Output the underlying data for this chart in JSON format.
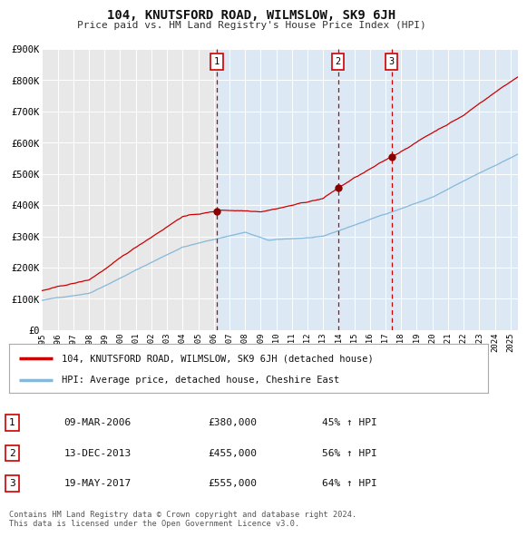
{
  "title": "104, KNUTSFORD ROAD, WILMSLOW, SK9 6JH",
  "subtitle": "Price paid vs. HM Land Registry's House Price Index (HPI)",
  "bg_color_left": "#e8e8e8",
  "bg_color_right": "#dce9f5",
  "red_line_color": "#cc0000",
  "blue_line_color": "#85b8d9",
  "grid_color": "#ffffff",
  "ylim": [
    0,
    900000
  ],
  "yticks": [
    0,
    100000,
    200000,
    300000,
    400000,
    500000,
    600000,
    700000,
    800000,
    900000
  ],
  "ytick_labels": [
    "£0",
    "£100K",
    "£200K",
    "£300K",
    "£400K",
    "£500K",
    "£600K",
    "£700K",
    "£800K",
    "£900K"
  ],
  "sale_dates": [
    2006.19,
    2013.95,
    2017.38
  ],
  "sale_prices": [
    380000,
    455000,
    555000
  ],
  "sale_labels": [
    "1",
    "2",
    "3"
  ],
  "legend_red_label": "104, KNUTSFORD ROAD, WILMSLOW, SK9 6JH (detached house)",
  "legend_blue_label": "HPI: Average price, detached house, Cheshire East",
  "table_data": [
    [
      "1",
      "09-MAR-2006",
      "£380,000",
      "45% ↑ HPI"
    ],
    [
      "2",
      "13-DEC-2013",
      "£455,000",
      "56% ↑ HPI"
    ],
    [
      "3",
      "19-MAY-2017",
      "£555,000",
      "64% ↑ HPI"
    ]
  ],
  "footnote": "Contains HM Land Registry data © Crown copyright and database right 2024.\nThis data is licensed under the Open Government Licence v3.0.",
  "xtick_years": [
    1995,
    1996,
    1997,
    1998,
    1999,
    2000,
    2001,
    2002,
    2003,
    2004,
    2005,
    2006,
    2007,
    2008,
    2009,
    2010,
    2011,
    2012,
    2013,
    2014,
    2015,
    2016,
    2017,
    2018,
    2019,
    2020,
    2021,
    2022,
    2023,
    2024,
    2025
  ],
  "xmin": 1995,
  "xmax": 2025.5
}
